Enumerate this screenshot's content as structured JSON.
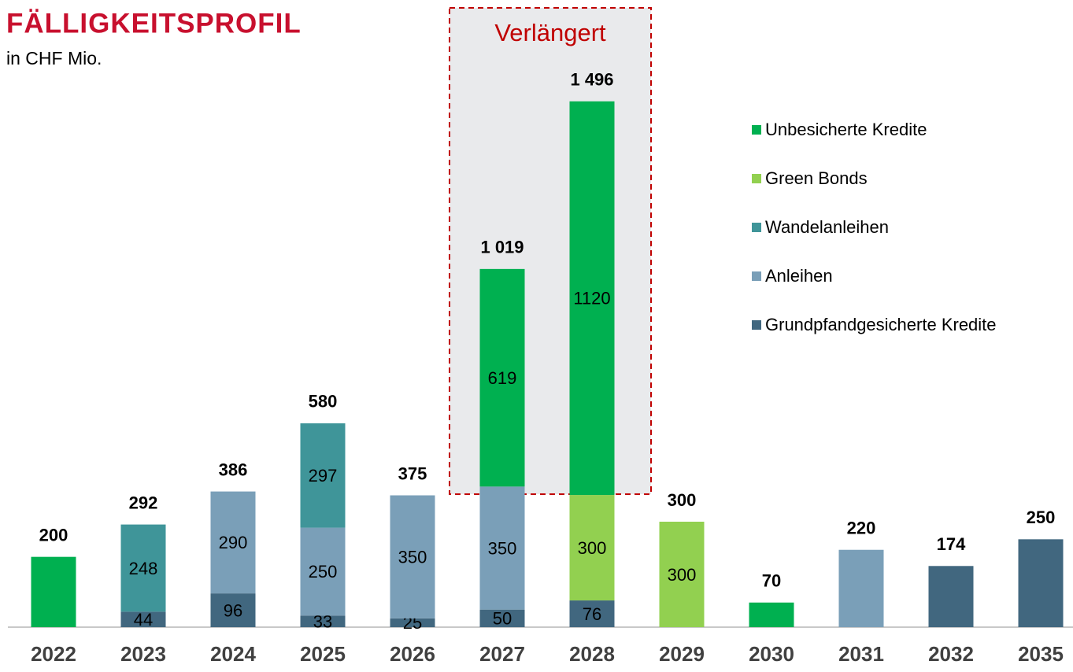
{
  "chart_data": {
    "type": "stacked_bar",
    "title": "FÄLLIGKEITSPROFIL",
    "subtitle": "in CHF Mio.",
    "annotation": "Verlängert",
    "categories": [
      "2022",
      "2023",
      "2024",
      "2025",
      "2026",
      "2027",
      "2028",
      "2029",
      "2030",
      "2031",
      "2032",
      "2035"
    ],
    "series": [
      {
        "name": "Grundpfandgesicherte Kredite",
        "color": "#41677f",
        "values": [
          null,
          44,
          96,
          33,
          25,
          50,
          76,
          null,
          null,
          null,
          174,
          250
        ]
      },
      {
        "name": "Anleihen",
        "color": "#7a9fb8",
        "values": [
          null,
          null,
          290,
          250,
          350,
          350,
          null,
          null,
          null,
          220,
          null,
          null
        ]
      },
      {
        "name": "Wandelanleihen",
        "color": "#3f9599",
        "values": [
          null,
          248,
          null,
          297,
          null,
          null,
          null,
          null,
          null,
          null,
          null,
          null
        ]
      },
      {
        "name": "Green Bonds",
        "color": "#92d050",
        "values": [
          null,
          null,
          null,
          null,
          null,
          null,
          300,
          300,
          null,
          null,
          null,
          null
        ]
      },
      {
        "name": "Unbesicherte Kredite",
        "color": "#00b050",
        "values": [
          200,
          null,
          null,
          null,
          null,
          619,
          1120,
          null,
          70,
          null,
          null,
          null
        ]
      }
    ],
    "segment_labels": [
      false,
      true,
      true,
      true,
      true,
      true,
      true,
      true,
      false,
      false,
      false,
      false
    ],
    "totals": {
      "values": [
        200,
        292,
        386,
        580,
        375,
        1019,
        1496,
        300,
        70,
        220,
        174,
        250
      ],
      "value_labels": [
        "200",
        "292",
        "386",
        "580",
        "375",
        "1 019",
        "1 496",
        "300",
        "70",
        "220",
        "174",
        "250"
      ]
    },
    "ylim": [
      0,
      1500
    ],
    "legend": "right"
  }
}
